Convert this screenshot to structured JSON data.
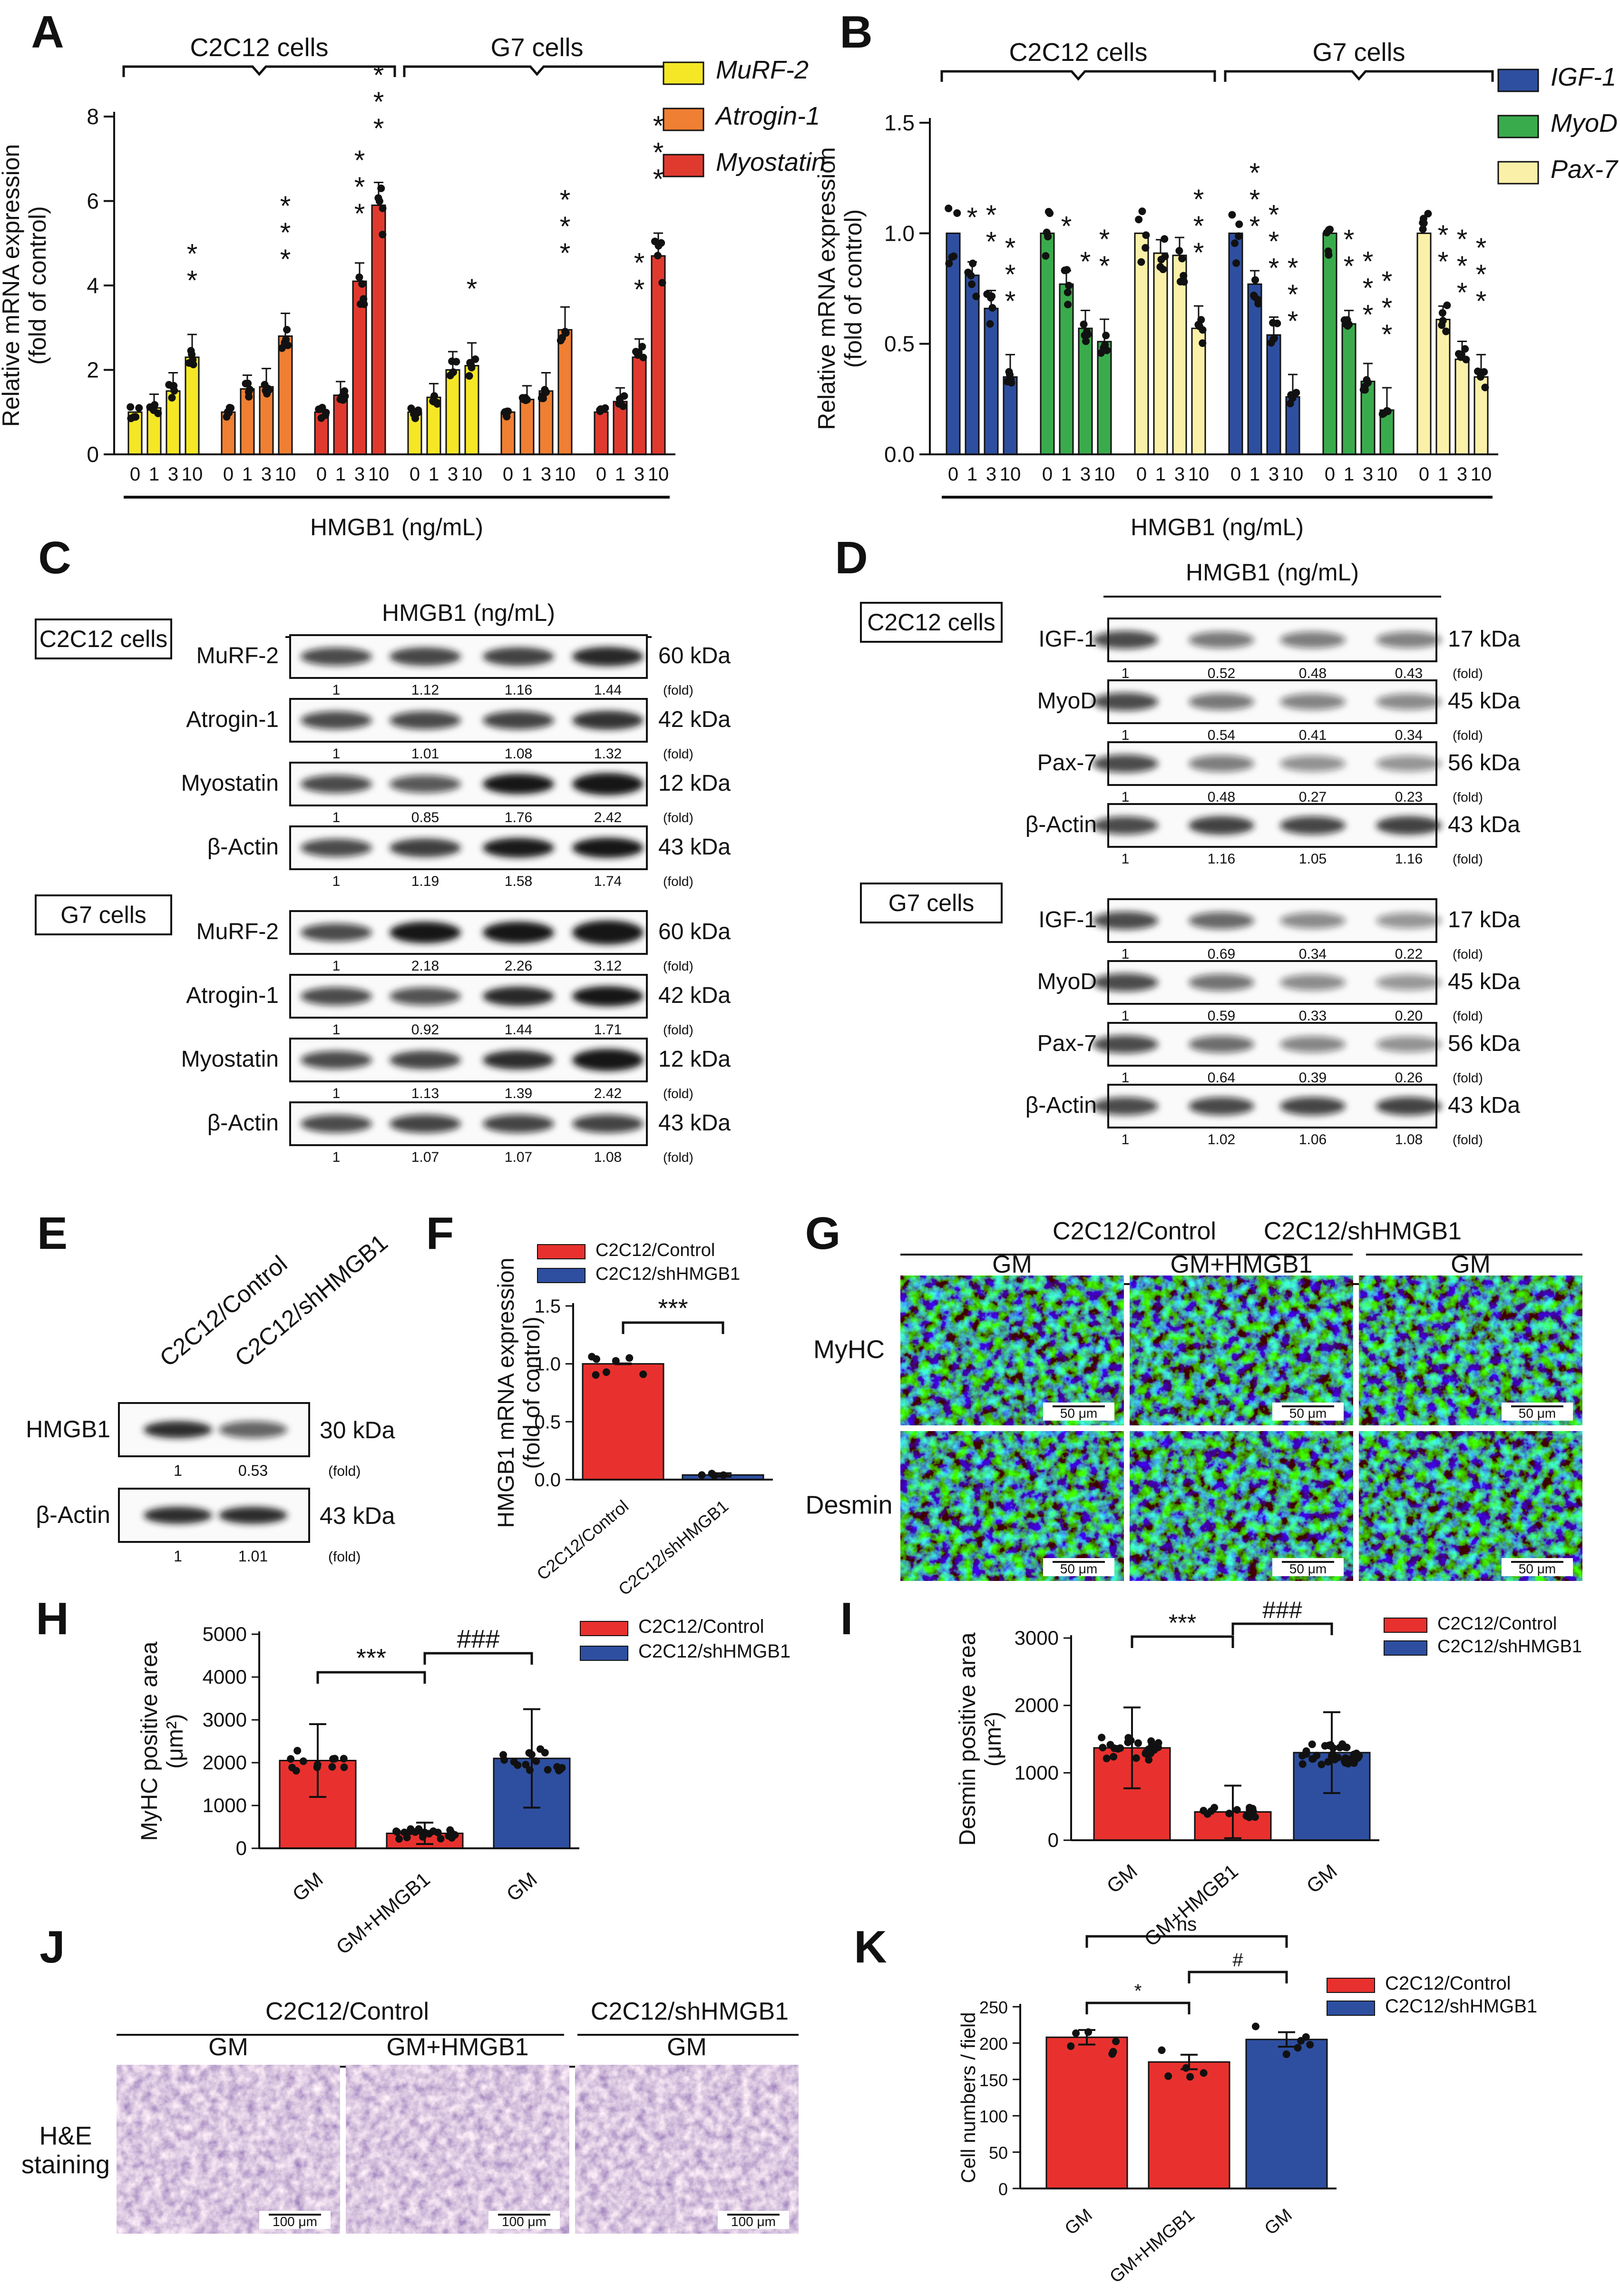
{
  "chart_data": [
    {
      "panel": "A",
      "type": "bar",
      "ylabel": "Relative mRNA expression\n(fold of control)",
      "xlabel": "HMGB1 (ng/mL)",
      "ylim": [
        0,
        8
      ],
      "yticks": [
        "0",
        "2",
        "4",
        "6",
        "8"
      ],
      "groups": [
        "C2C12 cells",
        "G7 cells"
      ],
      "categories": [
        "0",
        "1",
        "3",
        "10"
      ],
      "legend": {
        "placement": "top-right"
      },
      "series": [
        {
          "name": "MuRF-2",
          "color": "#f5e626",
          "values": [
            1,
            1.1,
            1.5,
            2.3
          ],
          "stars": [
            "",
            "",
            "",
            "**"
          ]
        },
        {
          "name": "Atrogin-1",
          "color": "#ef7f32",
          "values": [
            1,
            1.55,
            1.6,
            2.8
          ],
          "stars": [
            "",
            "",
            "",
            "***"
          ]
        },
        {
          "name": "Myostatin",
          "color": "#e03a2f",
          "values": [
            1,
            1.4,
            4.1,
            5.9
          ],
          "stars": [
            "",
            "",
            "***",
            "***"
          ]
        },
        {
          "name": "MuRF-2",
          "color": "#f5e626",
          "values": [
            1,
            1.35,
            2.0,
            2.1
          ],
          "stars": [
            "",
            "",
            "",
            "*"
          ]
        },
        {
          "name": "Atrogin-1",
          "color": "#ef7f32",
          "values": [
            1,
            1.3,
            1.5,
            2.95
          ],
          "stars": [
            "",
            "",
            "",
            "***"
          ]
        },
        {
          "name": "Myostatin",
          "color": "#e03a2f",
          "values": [
            1,
            1.25,
            2.3,
            4.7
          ],
          "stars": [
            "",
            "",
            "**",
            "***"
          ]
        }
      ]
    },
    {
      "panel": "B",
      "type": "bar",
      "ylabel": "Relative mRNA expression\n(fold of control)",
      "xlabel": "HMGB1 (ng/mL)",
      "ylim": [
        0,
        1.5
      ],
      "yticks": [
        "0.0",
        "0.5",
        "1.0",
        "1.5"
      ],
      "groups": [
        "C2C12 cells",
        "G7 cells"
      ],
      "categories": [
        "0",
        "1",
        "3",
        "10"
      ],
      "legend": {
        "placement": "top-right"
      },
      "series": [
        {
          "name": "IGF-1",
          "color": "#2e4fa0",
          "values": [
            1,
            0.81,
            0.66,
            0.35
          ],
          "stars": [
            "",
            "*",
            "**",
            "***"
          ]
        },
        {
          "name": "MyoD",
          "color": "#3aab4c",
          "values": [
            1,
            0.77,
            0.57,
            0.51
          ],
          "stars": [
            "",
            "*",
            "*",
            "**"
          ]
        },
        {
          "name": "Pax-7",
          "color": "#fbf0a8",
          "values": [
            1,
            0.91,
            0.9,
            0.57
          ],
          "stars": [
            "",
            "",
            "",
            "***"
          ]
        },
        {
          "name": "IGF-1",
          "color": "#2e4fa0",
          "values": [
            1,
            0.77,
            0.54,
            0.26
          ],
          "stars": [
            "",
            "***",
            "***",
            "***"
          ]
        },
        {
          "name": "MyoD",
          "color": "#3aab4c",
          "values": [
            1,
            0.59,
            0.33,
            0.2
          ],
          "stars": [
            "",
            "**",
            "***",
            "***"
          ]
        },
        {
          "name": "Pax-7",
          "color": "#fbf0a8",
          "values": [
            1,
            0.61,
            0.43,
            0.35
          ],
          "stars": [
            "",
            "**",
            "***",
            "***"
          ]
        }
      ]
    },
    {
      "panel": "F",
      "type": "bar",
      "ylabel": "HMGB1 mRNA expression\n(fold of control)",
      "ylim": [
        0,
        1.5
      ],
      "yticks": [
        "0.0",
        "0.5",
        "1.0",
        "1.5"
      ],
      "categories": [
        "C2C12/Control",
        "C2C12/shHMGB1"
      ],
      "colors": [
        "#e8312e",
        "#2e4fa0"
      ],
      "values": [
        1.0,
        0.04
      ],
      "legend": {
        "placement": "top-left",
        "entries": [
          "C2C12/Control",
          "C2C12/shHMGB1"
        ]
      },
      "sig": [
        {
          "from": 0,
          "to": 1,
          "label": "***"
        }
      ]
    },
    {
      "panel": "H",
      "type": "bar",
      "ylabel": "MyHC positive area\n(μm²)",
      "ylim": [
        0,
        5000
      ],
      "yticks": [
        "0",
        "1000",
        "2000",
        "3000",
        "4000",
        "5000"
      ],
      "categories": [
        "GM",
        "GM+HMGB1",
        "GM"
      ],
      "colors": [
        "#e8312e",
        "#e8312e",
        "#2e4fa0"
      ],
      "values": [
        2050,
        350,
        2100
      ],
      "legend": {
        "placement": "top-right",
        "entries": [
          "C2C12/Control",
          "C2C12/shHMGB1"
        ]
      },
      "sig": [
        {
          "from": 0,
          "to": 1,
          "label": "***"
        },
        {
          "from": 1,
          "to": 2,
          "label": "###"
        }
      ]
    },
    {
      "panel": "I",
      "type": "bar",
      "ylabel": "Desmin positive area\n(μm²)",
      "ylim": [
        0,
        3000
      ],
      "yticks": [
        "0",
        "1000",
        "2000",
        "3000"
      ],
      "categories": [
        "GM",
        "GM+HMGB1",
        "GM"
      ],
      "colors": [
        "#e8312e",
        "#e8312e",
        "#2e4fa0"
      ],
      "values": [
        1370,
        420,
        1300
      ],
      "legend": {
        "placement": "top-right",
        "entries": [
          "C2C12/Control",
          "C2C12/shHMGB1"
        ]
      },
      "sig": [
        {
          "from": 0,
          "to": 1,
          "label": "***"
        },
        {
          "from": 1,
          "to": 2,
          "label": "###"
        }
      ]
    },
    {
      "panel": "K",
      "type": "bar",
      "ylabel": "Cell numbers / field",
      "ylim": [
        0,
        250
      ],
      "yticks": [
        "0",
        "50",
        "100",
        "150",
        "200",
        "250"
      ],
      "categories": [
        "GM",
        "GM+HMGB1",
        "GM"
      ],
      "colors": [
        "#e8312e",
        "#e8312e",
        "#2e4fa0"
      ],
      "values": [
        208,
        174,
        205
      ],
      "legend": {
        "placement": "top-right",
        "entries": [
          "C2C12/Control",
          "C2C12/shHMGB1"
        ]
      },
      "sig": [
        {
          "from": 0,
          "to": 1,
          "label": "*"
        },
        {
          "from": 1,
          "to": 2,
          "label": "#"
        },
        {
          "from": 0,
          "to": 2,
          "label": "ns"
        }
      ]
    }
  ],
  "blots": {
    "C": {
      "title": "HMGB1 (ng/mL)",
      "lanes": [
        "0",
        "1",
        "3",
        "10"
      ],
      "sections": [
        {
          "label": "C2C12 cells",
          "rows": [
            {
              "protein": "MuRF-2",
              "kda": "60 kDa",
              "folds": [
                "1",
                "1.12",
                "1.16",
                "1.44"
              ]
            },
            {
              "protein": "Atrogin-1",
              "kda": "42 kDa",
              "folds": [
                "1",
                "1.01",
                "1.08",
                "1.32"
              ]
            },
            {
              "protein": "Myostatin",
              "kda": "12 kDa",
              "folds": [
                "1",
                "0.85",
                "1.76",
                "2.42"
              ]
            },
            {
              "protein": "β-Actin",
              "kda": "43 kDa",
              "folds": [
                "1",
                "1.19",
                "1.58",
                "1.74"
              ]
            }
          ]
        },
        {
          "label": "G7 cells",
          "rows": [
            {
              "protein": "MuRF-2",
              "kda": "60 kDa",
              "folds": [
                "1",
                "2.18",
                "2.26",
                "3.12"
              ]
            },
            {
              "protein": "Atrogin-1",
              "kda": "42 kDa",
              "folds": [
                "1",
                "0.92",
                "1.44",
                "1.71"
              ]
            },
            {
              "protein": "Myostatin",
              "kda": "12 kDa",
              "folds": [
                "1",
                "1.13",
                "1.39",
                "2.42"
              ]
            },
            {
              "protein": "β-Actin",
              "kda": "43 kDa",
              "folds": [
                "1",
                "1.07",
                "1.07",
                "1.08"
              ]
            }
          ]
        }
      ]
    },
    "D": {
      "title": "HMGB1 (ng/mL)",
      "lanes": [
        "0",
        "1",
        "3",
        "10"
      ],
      "sections": [
        {
          "label": "C2C12 cells",
          "rows": [
            {
              "protein": "IGF-1",
              "kda": "17 kDa",
              "folds": [
                "1",
                "0.52",
                "0.48",
                "0.43"
              ]
            },
            {
              "protein": "MyoD",
              "kda": "45 kDa",
              "folds": [
                "1",
                "0.54",
                "0.41",
                "0.34"
              ]
            },
            {
              "protein": "Pax-7",
              "kda": "56 kDa",
              "folds": [
                "1",
                "0.48",
                "0.27",
                "0.23"
              ]
            },
            {
              "protein": "β-Actin",
              "kda": "43 kDa",
              "folds": [
                "1",
                "1.16",
                "1.05",
                "1.16"
              ]
            }
          ]
        },
        {
          "label": "G7 cells",
          "rows": [
            {
              "protein": "IGF-1",
              "kda": "17 kDa",
              "folds": [
                "1",
                "0.69",
                "0.34",
                "0.22"
              ]
            },
            {
              "protein": "MyoD",
              "kda": "45 kDa",
              "folds": [
                "1",
                "0.59",
                "0.33",
                "0.20"
              ]
            },
            {
              "protein": "Pax-7",
              "kda": "56 kDa",
              "folds": [
                "1",
                "0.64",
                "0.39",
                "0.26"
              ]
            },
            {
              "protein": "β-Actin",
              "kda": "43 kDa",
              "folds": [
                "1",
                "1.02",
                "1.06",
                "1.08"
              ]
            }
          ]
        }
      ]
    },
    "E": {
      "lanes": [
        "C2C12/Control",
        "C2C12/shHMGB1"
      ],
      "rows": [
        {
          "protein": "HMGB1",
          "kda": "30 kDa",
          "folds": [
            "1",
            "0.53"
          ]
        },
        {
          "protein": "β-Actin",
          "kda": "43 kDa",
          "folds": [
            "1",
            "1.01"
          ]
        }
      ]
    },
    "fold_label": "(fold)"
  },
  "micrographs": {
    "G": {
      "groups": [
        "C2C12/Control",
        "C2C12/shHMGB1"
      ],
      "columns": [
        "GM",
        "GM+HMGB1",
        "GM"
      ],
      "rows": [
        "MyHC",
        "Desmin"
      ],
      "scale": "50 μm"
    },
    "J": {
      "groups": [
        "C2C12/Control",
        "C2C12/shHMGB1"
      ],
      "columns": [
        "GM",
        "GM+HMGB1",
        "GM"
      ],
      "rows": [
        "H&E\nstaining"
      ],
      "scale": "100 μm"
    }
  },
  "panel_letters": [
    "A",
    "B",
    "C",
    "D",
    "E",
    "F",
    "G",
    "H",
    "I",
    "J",
    "K"
  ]
}
